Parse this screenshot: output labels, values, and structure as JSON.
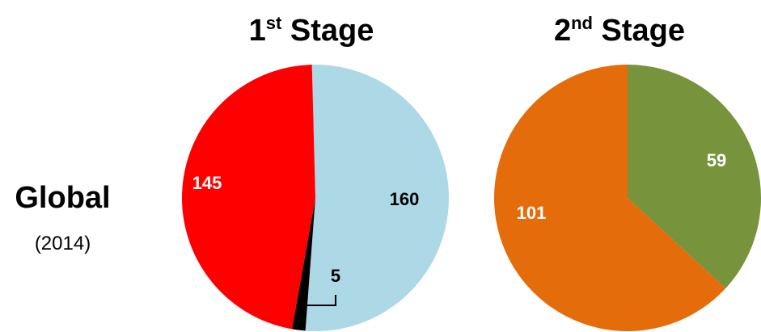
{
  "row": {
    "label": "Global",
    "sublabel": "(2014)"
  },
  "chart_data": [
    {
      "type": "pie",
      "title": {
        "main": "1",
        "sup": "st",
        "rest": " Stage"
      },
      "slices": [
        {
          "label": "160",
          "value": 160,
          "color": "#add8e6",
          "label_color": "#000000"
        },
        {
          "label": "5",
          "value": 5,
          "color": "#000000",
          "label_color": "#000000"
        },
        {
          "label": "145",
          "value": 145,
          "color": "#ff0000",
          "label_color": "#ffffff"
        }
      ]
    },
    {
      "type": "pie",
      "title": {
        "main": "2",
        "sup": "nd",
        "rest": " Stage"
      },
      "slices": [
        {
          "label": "59",
          "value": 59,
          "color": "#77933c",
          "label_color": "#ffffff"
        },
        {
          "label": "101",
          "value": 101,
          "color": "#e46c0a",
          "label_color": "#ffffff"
        }
      ]
    }
  ]
}
